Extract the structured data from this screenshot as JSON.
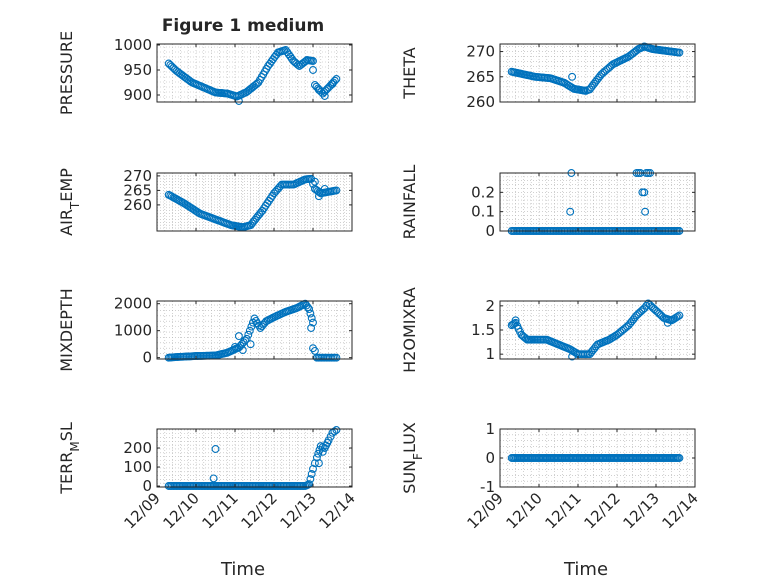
{
  "figure_title": "Figure 1 medium",
  "colors": {
    "marker": "#0072BD",
    "axis": "#262626",
    "grid": "#b3b3b3",
    "background": "#ffffff"
  },
  "x_axis": {
    "label": "Time",
    "range": [
      0,
      5
    ],
    "tick_values": [
      0,
      1,
      2,
      3,
      4,
      5
    ],
    "tick_labels": [
      "12/09",
      "12/10",
      "12/11",
      "12/12",
      "12/13",
      "12/14"
    ]
  },
  "chart_data": [
    {
      "type": "scatter",
      "name": "pressure",
      "ylabel": "PRESSURE",
      "title": "Figure 1 medium",
      "ylim": [
        886,
        1002
      ],
      "yticks": [
        900,
        950,
        1000
      ],
      "ytick_labels": [
        "900",
        "950",
        "1000"
      ],
      "grid": true,
      "x_tick_labels_visible": false,
      "keypoints": [
        [
          0.3,
          963
        ],
        [
          0.5,
          948
        ],
        [
          0.9,
          925
        ],
        [
          1.5,
          905
        ],
        [
          1.8,
          903
        ],
        [
          2.05,
          897
        ],
        [
          2.3,
          906
        ],
        [
          2.6,
          925
        ],
        [
          2.85,
          958
        ],
        [
          3.1,
          985
        ],
        [
          3.3,
          990
        ],
        [
          3.5,
          968
        ],
        [
          3.65,
          958
        ],
        [
          3.85,
          970
        ],
        [
          4.0,
          968
        ],
        [
          4.05,
          920
        ],
        [
          4.25,
          903
        ],
        [
          4.4,
          915
        ],
        [
          4.6,
          932
        ]
      ],
      "step": 0.04,
      "outliers": [
        [
          2.1,
          888
        ],
        [
          4.0,
          950
        ],
        [
          4.15,
          910
        ],
        [
          4.3,
          898
        ],
        [
          4.5,
          922
        ]
      ]
    },
    {
      "type": "scatter",
      "name": "theta",
      "ylabel": "THETA",
      "ylim": [
        260,
        271.5
      ],
      "yticks": [
        260,
        265,
        270
      ],
      "ytick_labels": [
        "260",
        "265",
        "270"
      ],
      "grid": true,
      "x_tick_labels_visible": false,
      "keypoints": [
        [
          0.3,
          266
        ],
        [
          0.6,
          265.5
        ],
        [
          0.9,
          265
        ],
        [
          1.3,
          264.7
        ],
        [
          1.65,
          263.8
        ],
        [
          1.9,
          262.6
        ],
        [
          2.2,
          262.2
        ],
        [
          2.3,
          262.5
        ],
        [
          2.6,
          265.5
        ],
        [
          2.9,
          267.5
        ],
        [
          3.3,
          269
        ],
        [
          3.55,
          270.5
        ],
        [
          3.7,
          271
        ],
        [
          3.9,
          270.5
        ],
        [
          4.2,
          270.2
        ],
        [
          4.6,
          269.8
        ]
      ],
      "step": 0.04,
      "outliers": [
        [
          1.85,
          265
        ],
        [
          2.0,
          262.5
        ],
        [
          2.15,
          262.3
        ]
      ]
    },
    {
      "type": "scatter",
      "name": "air_temp",
      "ylabel": "AIR_TEMP",
      "ylim": [
        251,
        271
      ],
      "yticks": [
        260,
        265,
        270
      ],
      "ytick_labels": [
        "260",
        "265",
        "270"
      ],
      "grid": true,
      "x_tick_labels_visible": false,
      "keypoints": [
        [
          0.3,
          263.5
        ],
        [
          0.7,
          260.5
        ],
        [
          1.1,
          257
        ],
        [
          1.5,
          255
        ],
        [
          1.9,
          253
        ],
        [
          2.2,
          252.3
        ],
        [
          2.4,
          253
        ],
        [
          2.7,
          258
        ],
        [
          3.0,
          264
        ],
        [
          3.2,
          267
        ],
        [
          3.5,
          267
        ],
        [
          3.8,
          268.8
        ],
        [
          3.95,
          269
        ],
        [
          4.05,
          265.5
        ],
        [
          4.2,
          264
        ],
        [
          4.4,
          264.5
        ],
        [
          4.6,
          265
        ]
      ],
      "step": 0.04,
      "outliers": [
        [
          4.05,
          268
        ],
        [
          4.15,
          263
        ],
        [
          4.3,
          265.5
        ]
      ]
    },
    {
      "type": "scatter",
      "name": "rainfall",
      "ylabel": "RAINFALL",
      "ylim": [
        0,
        0.3
      ],
      "yticks": [
        0,
        0.1,
        0.2
      ],
      "ytick_labels": [
        "0",
        "0.1",
        "0.2"
      ],
      "grid": true,
      "x_tick_labels_visible": false,
      "keypoints": [
        [
          0.3,
          0
        ],
        [
          4.6,
          0
        ]
      ],
      "step": 0.04,
      "outliers": [
        [
          1.8,
          0.1
        ],
        [
          1.83,
          0.3
        ],
        [
          3.5,
          0.3
        ],
        [
          3.55,
          0.3
        ],
        [
          3.6,
          0.3
        ],
        [
          3.65,
          0.2
        ],
        [
          3.7,
          0.2
        ],
        [
          3.72,
          0.1
        ],
        [
          3.75,
          0.3
        ],
        [
          3.8,
          0.3
        ],
        [
          3.85,
          0.3
        ]
      ]
    },
    {
      "type": "scatter",
      "name": "mixdepth",
      "ylabel": "MIXDEPTH",
      "ylim": [
        -50,
        2100
      ],
      "yticks": [
        0,
        1000,
        2000
      ],
      "ytick_labels": [
        "0",
        "1000",
        "2000"
      ],
      "grid": true,
      "x_tick_labels_visible": false,
      "keypoints": [
        [
          0.3,
          0
        ],
        [
          0.6,
          30
        ],
        [
          1.0,
          60
        ],
        [
          1.5,
          80
        ],
        [
          1.8,
          180
        ],
        [
          2.1,
          380
        ],
        [
          2.3,
          700
        ],
        [
          2.5,
          1450
        ],
        [
          2.65,
          1100
        ],
        [
          2.8,
          1350
        ],
        [
          3.0,
          1500
        ],
        [
          3.3,
          1700
        ],
        [
          3.6,
          1850
        ],
        [
          3.8,
          2000
        ],
        [
          3.9,
          1800
        ],
        [
          4.0,
          1300
        ],
        [
          4.05,
          250
        ],
        [
          4.1,
          0
        ],
        [
          4.3,
          0
        ],
        [
          4.6,
          0
        ]
      ],
      "step": 0.04,
      "outliers": [
        [
          2.0,
          400
        ],
        [
          2.1,
          800
        ],
        [
          2.2,
          280
        ],
        [
          2.4,
          500
        ],
        [
          3.95,
          1100
        ],
        [
          4.0,
          350
        ]
      ]
    },
    {
      "type": "scatter",
      "name": "h2omixra",
      "ylabel": "H2OMIXRA",
      "ylim": [
        0.9,
        2.1
      ],
      "yticks": [
        1,
        1.5,
        2
      ],
      "ytick_labels": [
        "1",
        "1.5",
        "2"
      ],
      "grid": true,
      "x_tick_labels_visible": false,
      "keypoints": [
        [
          0.3,
          1.6
        ],
        [
          0.4,
          1.65
        ],
        [
          0.55,
          1.4
        ],
        [
          0.7,
          1.3
        ],
        [
          1.0,
          1.3
        ],
        [
          1.2,
          1.3
        ],
        [
          1.5,
          1.2
        ],
        [
          1.8,
          1.1
        ],
        [
          2.0,
          1.0
        ],
        [
          2.3,
          1.0
        ],
        [
          2.5,
          1.2
        ],
        [
          2.8,
          1.3
        ],
        [
          3.0,
          1.4
        ],
        [
          3.3,
          1.6
        ],
        [
          3.5,
          1.8
        ],
        [
          3.7,
          1.95
        ],
        [
          3.8,
          2.05
        ],
        [
          4.0,
          1.9
        ],
        [
          4.2,
          1.75
        ],
        [
          4.4,
          1.7
        ],
        [
          4.6,
          1.8
        ]
      ],
      "step": 0.04,
      "outliers": [
        [
          0.4,
          1.7
        ],
        [
          1.85,
          0.95
        ],
        [
          4.3,
          1.65
        ]
      ]
    },
    {
      "type": "scatter",
      "name": "terr_msl",
      "ylabel": "TERR_MSL",
      "ylim": [
        -5,
        300
      ],
      "yticks": [
        0,
        100,
        200
      ],
      "ytick_labels": [
        "0",
        "100",
        "200"
      ],
      "grid": true,
      "x_tick_labels_visible": true,
      "keypoints": [
        [
          0.3,
          0
        ],
        [
          3.8,
          0
        ],
        [
          3.9,
          10
        ],
        [
          4.0,
          90
        ],
        [
          4.1,
          150
        ],
        [
          4.2,
          210
        ],
        [
          4.3,
          200
        ],
        [
          4.4,
          240
        ],
        [
          4.5,
          280
        ],
        [
          4.6,
          295
        ]
      ],
      "step": 0.04,
      "outliers": [
        [
          1.5,
          195
        ],
        [
          1.45,
          40
        ],
        [
          4.15,
          120
        ],
        [
          4.25,
          180
        ]
      ]
    },
    {
      "type": "scatter",
      "name": "sun_flux",
      "ylabel": "SUN_FLUX",
      "ylim": [
        -1,
        1
      ],
      "yticks": [
        -1,
        0,
        1
      ],
      "ytick_labels": [
        "-1",
        "0",
        "1"
      ],
      "grid": true,
      "x_tick_labels_visible": true,
      "keypoints": [
        [
          0.3,
          0
        ],
        [
          4.6,
          0
        ]
      ],
      "step": 0.035,
      "outliers": []
    }
  ]
}
